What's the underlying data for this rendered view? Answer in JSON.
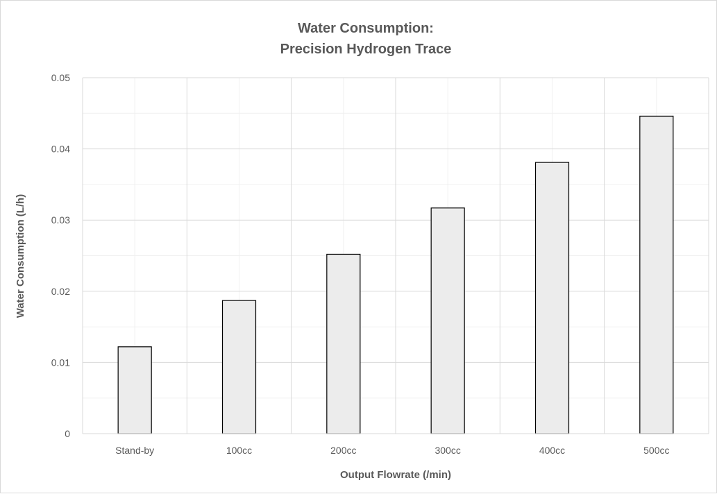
{
  "chart_data": {
    "type": "bar",
    "title": [
      "Water Consumption:",
      "Precision Hydrogen Trace"
    ],
    "xlabel": "Output Flowrate (/min)",
    "ylabel": "Water Consumption (L/h)",
    "categories": [
      "Stand-by",
      "100cc",
      "200cc",
      "300cc",
      "400cc",
      "500cc"
    ],
    "values": [
      0.0122,
      0.0187,
      0.0252,
      0.0317,
      0.0381,
      0.0446
    ],
    "ylim": [
      0,
      0.05
    ],
    "yticks": [
      "0",
      "0.01",
      "0.02",
      "0.03",
      "0.04",
      "0.05"
    ],
    "ytick_values": [
      0,
      0.01,
      0.02,
      0.03,
      0.04,
      0.05
    ],
    "minor_ytick_values": [
      0.005,
      0.015,
      0.025,
      0.035,
      0.045
    ],
    "grid": true,
    "legend": "none",
    "colors": {
      "bar_fill": "#ececec",
      "bar_stroke": "#000000",
      "major_grid": "#d9d9d9",
      "minor_grid": "#f0f0f0",
      "text": "#595959"
    }
  }
}
